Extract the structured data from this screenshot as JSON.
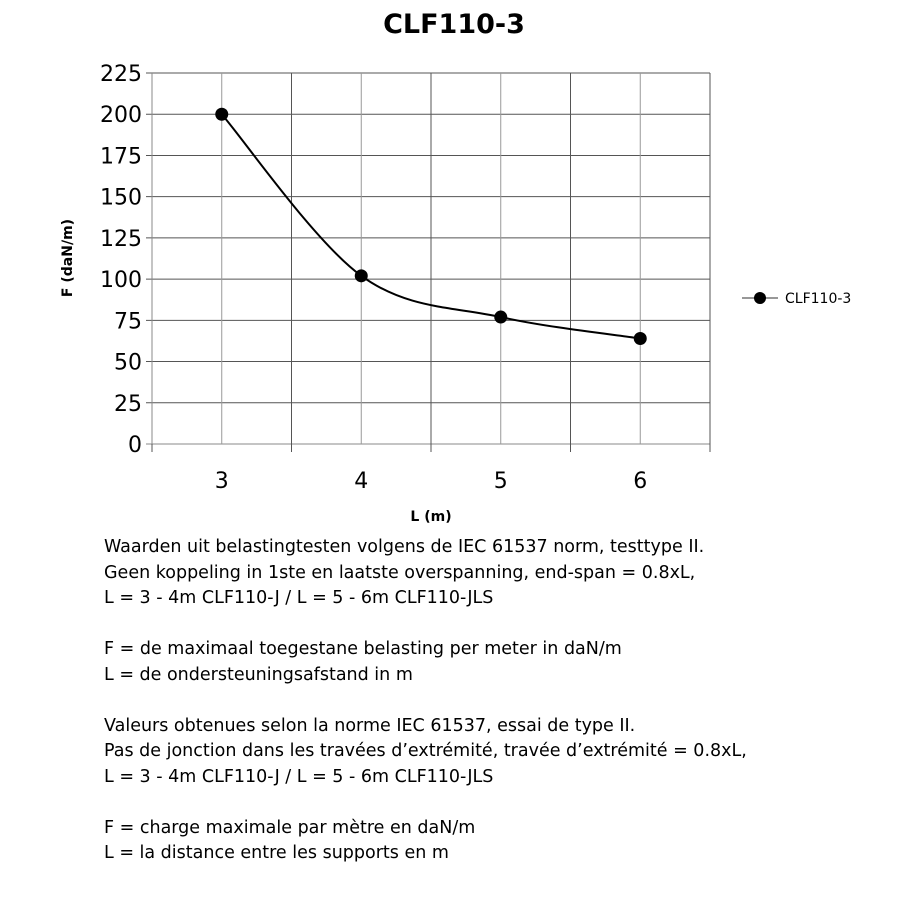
{
  "chart_data": {
    "type": "line",
    "title": "CLF110-3",
    "xlabel": "L (m)",
    "ylabel": "F (daN/m)",
    "categories": [
      "3",
      "4",
      "5",
      "6"
    ],
    "series": [
      {
        "name": "CLF110-3",
        "values": [
          200,
          102,
          77,
          64
        ],
        "color": "#000000",
        "marker": "circle",
        "smooth": true
      }
    ],
    "ylim": [
      0,
      225
    ],
    "yticks": [
      0,
      25,
      50,
      75,
      100,
      125,
      150,
      175,
      200,
      225
    ],
    "grid": true,
    "legend": "right"
  },
  "notes": {
    "nl": [
      "Waarden uit belastingtesten volgens de IEC 61537 norm, testtype II.",
      "Geen koppeling in 1ste en laatste overspanning, end-span = 0.8xL,",
      "L = 3 - 4m CLF110-J / L = 5 - 6m CLF110-JLS"
    ],
    "nl_def": [
      "F = de maximaal toegestane belasting per meter in daN/m",
      "L = de ondersteuningsafstand in m"
    ],
    "fr": [
      "Valeurs obtenues selon la norme IEC 61537, essai de type II.",
      "Pas de jonction dans les travées d’extrémité, travée d’extrémité = 0.8xL,",
      "L = 3 - 4m CLF110-J / L = 5 - 6m CLF110-JLS"
    ],
    "fr_def": [
      "F = charge maximale par mètre en daN/m",
      "L = la distance entre les supports en m"
    ]
  }
}
